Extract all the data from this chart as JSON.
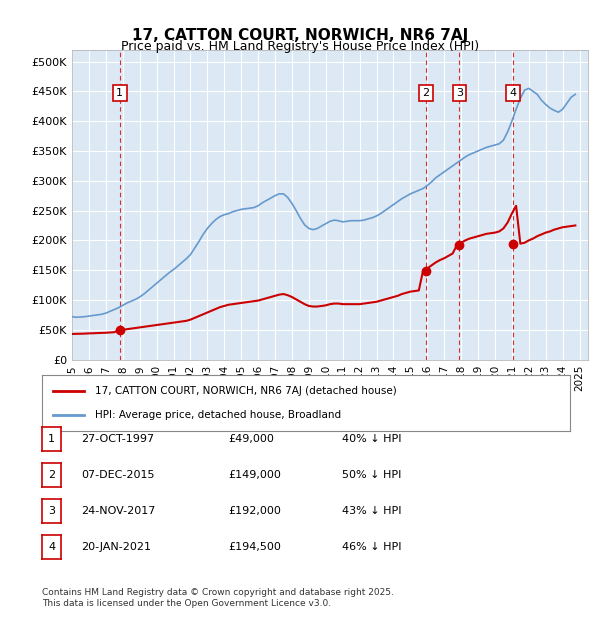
{
  "title": "17, CATTON COURT, NORWICH, NR6 7AJ",
  "subtitle": "Price paid vs. HM Land Registry's House Price Index (HPI)",
  "background_color": "#dce9f5",
  "plot_bg_color": "#dce9f5",
  "ylabel": "",
  "ylim": [
    0,
    520000
  ],
  "yticks": [
    0,
    50000,
    100000,
    150000,
    200000,
    250000,
    300000,
    350000,
    400000,
    450000,
    500000
  ],
  "ytick_labels": [
    "£0",
    "£50K",
    "£100K",
    "£150K",
    "£200K",
    "£250K",
    "£300K",
    "£350K",
    "£400K",
    "£450K",
    "£500K"
  ],
  "xlim_start": 1995.0,
  "xlim_end": 2025.5,
  "xticks": [
    1995,
    1996,
    1997,
    1998,
    1999,
    2000,
    2001,
    2002,
    2003,
    2004,
    2005,
    2006,
    2007,
    2008,
    2009,
    2010,
    2011,
    2012,
    2013,
    2014,
    2015,
    2016,
    2017,
    2018,
    2019,
    2020,
    2021,
    2022,
    2023,
    2024,
    2025
  ],
  "hpi_color": "#6699cc",
  "price_color": "#cc0000",
  "vline_color": "#cc0000",
  "grid_color": "#ffffff",
  "sale_points": [
    {
      "year": 1997.82,
      "price": 49000,
      "label": "1"
    },
    {
      "year": 2015.93,
      "price": 149000,
      "label": "2"
    },
    {
      "year": 2017.9,
      "price": 192000,
      "label": "3"
    },
    {
      "year": 2021.05,
      "price": 194500,
      "label": "4"
    }
  ],
  "legend_entries": [
    {
      "label": "17, CATTON COURT, NORWICH, NR6 7AJ (detached house)",
      "color": "#cc0000"
    },
    {
      "label": "HPI: Average price, detached house, Broadland",
      "color": "#6699cc"
    }
  ],
  "table_rows": [
    {
      "num": "1",
      "date": "27-OCT-1997",
      "price": "£49,000",
      "pct": "40% ↓ HPI"
    },
    {
      "num": "2",
      "date": "07-DEC-2015",
      "price": "£149,000",
      "pct": "50% ↓ HPI"
    },
    {
      "num": "3",
      "date": "24-NOV-2017",
      "price": "£192,000",
      "pct": "43% ↓ HPI"
    },
    {
      "num": "4",
      "date": "20-JAN-2021",
      "price": "£194,500",
      "pct": "46% ↓ HPI"
    }
  ],
  "footnote": "Contains HM Land Registry data © Crown copyright and database right 2025.\nThis data is licensed under the Open Government Licence v3.0.",
  "hpi_data_x": [
    1995.0,
    1995.25,
    1995.5,
    1995.75,
    1996.0,
    1996.25,
    1996.5,
    1996.75,
    1997.0,
    1997.25,
    1997.5,
    1997.75,
    1998.0,
    1998.25,
    1998.5,
    1998.75,
    1999.0,
    1999.25,
    1999.5,
    1999.75,
    2000.0,
    2000.25,
    2000.5,
    2000.75,
    2001.0,
    2001.25,
    2001.5,
    2001.75,
    2002.0,
    2002.25,
    2002.5,
    2002.75,
    2003.0,
    2003.25,
    2003.5,
    2003.75,
    2004.0,
    2004.25,
    2004.5,
    2004.75,
    2005.0,
    2005.25,
    2005.5,
    2005.75,
    2006.0,
    2006.25,
    2006.5,
    2006.75,
    2007.0,
    2007.25,
    2007.5,
    2007.75,
    2008.0,
    2008.25,
    2008.5,
    2008.75,
    2009.0,
    2009.25,
    2009.5,
    2009.75,
    2010.0,
    2010.25,
    2010.5,
    2010.75,
    2011.0,
    2011.25,
    2011.5,
    2011.75,
    2012.0,
    2012.25,
    2012.5,
    2012.75,
    2013.0,
    2013.25,
    2013.5,
    2013.75,
    2014.0,
    2014.25,
    2014.5,
    2014.75,
    2015.0,
    2015.25,
    2015.5,
    2015.75,
    2016.0,
    2016.25,
    2016.5,
    2016.75,
    2017.0,
    2017.25,
    2017.5,
    2017.75,
    2018.0,
    2018.25,
    2018.5,
    2018.75,
    2019.0,
    2019.25,
    2019.5,
    2019.75,
    2020.0,
    2020.25,
    2020.5,
    2020.75,
    2021.0,
    2021.25,
    2021.5,
    2021.75,
    2022.0,
    2022.25,
    2022.5,
    2022.75,
    2023.0,
    2023.25,
    2023.5,
    2023.75,
    2024.0,
    2024.25,
    2024.5,
    2024.75
  ],
  "hpi_data_y": [
    72000,
    71000,
    71500,
    72000,
    73000,
    74000,
    75000,
    76000,
    78000,
    81000,
    84000,
    87000,
    91000,
    95000,
    98000,
    101000,
    105000,
    110000,
    116000,
    122000,
    128000,
    134000,
    140000,
    146000,
    151000,
    157000,
    163000,
    169000,
    176000,
    187000,
    198000,
    210000,
    220000,
    228000,
    235000,
    240000,
    243000,
    245000,
    248000,
    250000,
    252000,
    253000,
    254000,
    255000,
    258000,
    263000,
    267000,
    271000,
    275000,
    278000,
    278000,
    272000,
    262000,
    250000,
    237000,
    226000,
    220000,
    218000,
    220000,
    224000,
    228000,
    232000,
    234000,
    233000,
    231000,
    232000,
    233000,
    233000,
    233000,
    234000,
    236000,
    238000,
    241000,
    245000,
    250000,
    255000,
    260000,
    265000,
    270000,
    274000,
    278000,
    281000,
    284000,
    287000,
    292000,
    298000,
    305000,
    310000,
    315000,
    320000,
    325000,
    330000,
    335000,
    340000,
    344000,
    347000,
    350000,
    353000,
    356000,
    358000,
    360000,
    362000,
    368000,
    382000,
    400000,
    420000,
    438000,
    452000,
    455000,
    450000,
    445000,
    435000,
    428000,
    422000,
    418000,
    415000,
    420000,
    430000,
    440000,
    445000
  ],
  "price_data_x": [
    1995.0,
    1995.25,
    1995.5,
    1995.75,
    1996.0,
    1996.25,
    1996.5,
    1996.75,
    1997.0,
    1997.25,
    1997.5,
    1997.75,
    1998.0,
    1998.25,
    1998.5,
    1998.75,
    1999.0,
    1999.25,
    1999.5,
    1999.75,
    2000.0,
    2000.25,
    2000.5,
    2000.75,
    2001.0,
    2001.25,
    2001.5,
    2001.75,
    2002.0,
    2002.25,
    2002.5,
    2002.75,
    2003.0,
    2003.25,
    2003.5,
    2003.75,
    2004.0,
    2004.25,
    2004.5,
    2004.75,
    2005.0,
    2005.25,
    2005.5,
    2005.75,
    2006.0,
    2006.25,
    2006.5,
    2006.75,
    2007.0,
    2007.25,
    2007.5,
    2007.75,
    2008.0,
    2008.25,
    2008.5,
    2008.75,
    2009.0,
    2009.25,
    2009.5,
    2009.75,
    2010.0,
    2010.25,
    2010.5,
    2010.75,
    2011.0,
    2011.25,
    2011.5,
    2011.75,
    2012.0,
    2012.25,
    2012.5,
    2012.75,
    2013.0,
    2013.25,
    2013.5,
    2013.75,
    2014.0,
    2014.25,
    2014.5,
    2014.75,
    2015.0,
    2015.25,
    2015.5,
    2015.75,
    2016.0,
    2016.25,
    2016.5,
    2016.75,
    2017.0,
    2017.25,
    2017.5,
    2017.75,
    2018.0,
    2018.25,
    2018.5,
    2018.75,
    2019.0,
    2019.25,
    2019.5,
    2019.75,
    2020.0,
    2020.25,
    2020.5,
    2020.75,
    2021.0,
    2021.25,
    2021.5,
    2021.75,
    2022.0,
    2022.25,
    2022.5,
    2022.75,
    2023.0,
    2023.25,
    2023.5,
    2023.75,
    2024.0,
    2024.25,
    2024.5,
    2024.75
  ],
  "price_data_y": [
    43000,
    43200,
    43400,
    43600,
    44000,
    44200,
    44500,
    44800,
    45000,
    45500,
    46000,
    49000,
    50000,
    51000,
    52000,
    53000,
    54000,
    55000,
    56000,
    57000,
    58000,
    59000,
    60000,
    61000,
    62000,
    63000,
    64000,
    65000,
    67000,
    70000,
    73000,
    76000,
    79000,
    82000,
    85000,
    88000,
    90000,
    92000,
    93000,
    94000,
    95000,
    96000,
    97000,
    98000,
    99000,
    101000,
    103000,
    105000,
    107000,
    109000,
    110000,
    108000,
    105000,
    101000,
    97000,
    93000,
    90000,
    89000,
    89000,
    90000,
    91000,
    93000,
    94000,
    94000,
    93000,
    93000,
    93000,
    93000,
    93000,
    94000,
    95000,
    96000,
    97000,
    99000,
    101000,
    103000,
    105000,
    107000,
    110000,
    112000,
    114000,
    115000,
    116000,
    149000,
    153000,
    158000,
    163000,
    167000,
    170000,
    174000,
    178000,
    192000,
    196000,
    200000,
    203000,
    205000,
    207000,
    209000,
    211000,
    212000,
    213000,
    215000,
    220000,
    230000,
    245000,
    258000,
    194500,
    196000,
    200000,
    203000,
    207000,
    210000,
    213000,
    215000,
    218000,
    220000,
    222000,
    223000,
    224000,
    225000
  ]
}
